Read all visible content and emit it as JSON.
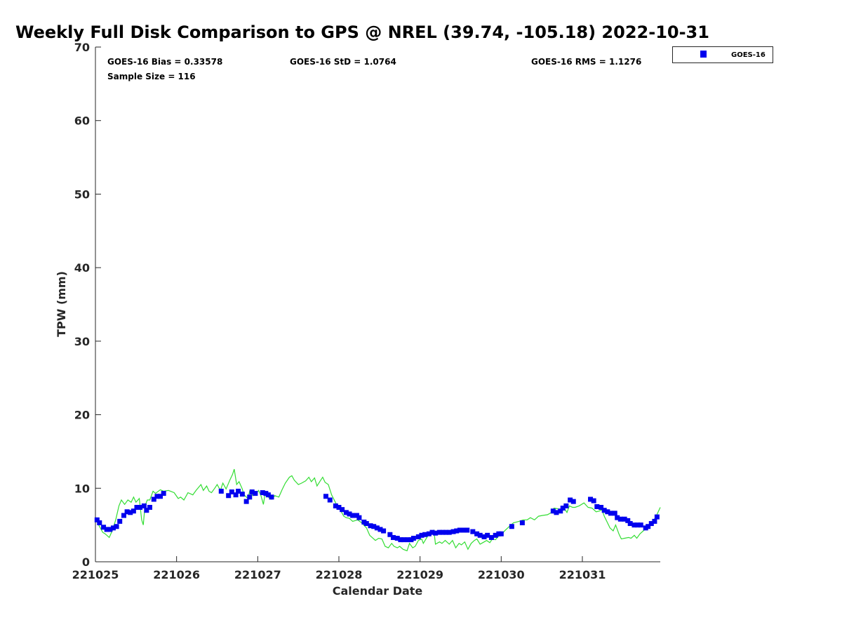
{
  "chart_data": {
    "type": "scatter",
    "title": "Weekly Full Disk Comparison to GPS @ NREL (39.74, -105.18) 2022-10-31",
    "xlabel": "Calendar Date",
    "ylabel": "TPW (mm)",
    "x_units": "days since 221025",
    "xlim": [
      0,
      6.96
    ],
    "ylim": [
      0,
      70
    ],
    "xticks": [
      0,
      1,
      2,
      3,
      4,
      5,
      6
    ],
    "xtick_labels": [
      "221025",
      "221026",
      "221027",
      "221028",
      "221029",
      "221030",
      "221031"
    ],
    "yticks": [
      0,
      10,
      20,
      30,
      40,
      50,
      60,
      70
    ],
    "ytick_labels": [
      "0",
      "10",
      "20",
      "30",
      "40",
      "50",
      "60",
      "70"
    ],
    "grid": false,
    "legend": {
      "position": "top-right",
      "entries": [
        "GOES-16"
      ]
    },
    "stats": {
      "bias": "GOES-16 Bias = 0.33578",
      "std": "GOES-16 StD = 1.0764",
      "rms": "GOES-16 RMS = 1.1276",
      "sample": "Sample Size = 116"
    },
    "colors": {
      "goes": "#0000ee",
      "gps": "#33dd33"
    },
    "series": [
      {
        "name": "GOES-16",
        "kind": "markers",
        "x": [
          0.02,
          0.05,
          0.1,
          0.14,
          0.18,
          0.22,
          0.26,
          0.3,
          0.35,
          0.39,
          0.43,
          0.47,
          0.51,
          0.55,
          0.6,
          0.63,
          0.67,
          0.72,
          0.76,
          0.8,
          0.84,
          1.55,
          1.64,
          1.68,
          1.73,
          1.76,
          1.81,
          1.86,
          1.9,
          1.93,
          1.97,
          2.06,
          2.1,
          2.13,
          2.17,
          2.84,
          2.89,
          2.96,
          3.0,
          3.04,
          3.09,
          3.13,
          3.17,
          3.22,
          3.25,
          3.31,
          3.34,
          3.39,
          3.43,
          3.47,
          3.51,
          3.55,
          3.63,
          3.67,
          3.72,
          3.76,
          3.8,
          3.85,
          3.89,
          3.92,
          3.98,
          4.02,
          4.06,
          4.11,
          4.15,
          4.19,
          4.24,
          4.28,
          4.32,
          4.36,
          4.41,
          4.45,
          4.49,
          4.54,
          4.58,
          4.65,
          4.7,
          4.74,
          4.79,
          4.83,
          4.88,
          4.93,
          4.97,
          5.0,
          5.13,
          5.26,
          5.64,
          5.68,
          5.73,
          5.76,
          5.8,
          5.85,
          5.89,
          6.1,
          6.14,
          6.18,
          6.23,
          6.27,
          6.31,
          6.35,
          6.4,
          6.43,
          6.47,
          6.52,
          6.56,
          6.59,
          6.64,
          6.68,
          6.72,
          6.78,
          6.81,
          6.85,
          6.89,
          6.92
        ],
        "y": [
          5.7,
          5.3,
          4.7,
          4.4,
          4.4,
          4.6,
          4.8,
          5.5,
          6.3,
          6.8,
          6.7,
          6.9,
          7.4,
          7.4,
          7.6,
          7.0,
          7.4,
          8.5,
          8.9,
          8.9,
          9.3,
          9.6,
          9.0,
          9.5,
          9.1,
          9.6,
          9.2,
          8.2,
          8.8,
          9.5,
          9.3,
          9.4,
          9.3,
          9.1,
          8.8,
          8.9,
          8.4,
          7.6,
          7.4,
          7.1,
          6.7,
          6.5,
          6.3,
          6.3,
          6.0,
          5.4,
          5.2,
          4.9,
          4.8,
          4.6,
          4.4,
          4.2,
          3.7,
          3.3,
          3.2,
          3.0,
          3.0,
          3.0,
          3.0,
          3.2,
          3.4,
          3.6,
          3.7,
          3.8,
          4.0,
          3.9,
          4.0,
          4.0,
          4.0,
          4.0,
          4.1,
          4.2,
          4.3,
          4.3,
          4.3,
          4.1,
          3.8,
          3.6,
          3.4,
          3.6,
          3.3,
          3.6,
          3.8,
          3.8,
          4.8,
          5.3,
          6.9,
          6.7,
          6.9,
          7.3,
          7.6,
          8.4,
          8.2,
          8.5,
          8.3,
          7.5,
          7.4,
          7.0,
          6.8,
          6.6,
          6.6,
          6.0,
          5.8,
          5.8,
          5.6,
          5.2,
          5.0,
          5.0,
          5.0,
          4.6,
          4.8,
          5.2,
          5.5,
          6.1
        ]
      },
      {
        "name": "GPS",
        "kind": "line",
        "x": [
          0.0,
          0.04,
          0.09,
          0.12,
          0.17,
          0.21,
          0.25,
          0.29,
          0.32,
          0.36,
          0.4,
          0.44,
          0.47,
          0.5,
          0.54,
          0.57,
          0.59,
          0.61,
          0.64,
          0.67,
          0.71,
          0.74,
          0.8,
          0.84,
          0.9,
          0.97,
          1.02,
          1.05,
          1.09,
          1.14,
          1.2,
          1.24,
          1.3,
          1.33,
          1.37,
          1.4,
          1.43,
          1.47,
          1.5,
          1.54,
          1.57,
          1.61,
          1.66,
          1.69,
          1.71,
          1.74,
          1.77,
          1.81,
          1.83,
          1.88,
          1.9,
          1.94,
          1.97,
          2.01,
          2.04,
          2.07,
          2.09,
          2.13,
          2.17,
          2.21,
          2.26,
          2.3,
          2.34,
          2.39,
          2.42,
          2.45,
          2.5,
          2.54,
          2.59,
          2.63,
          2.66,
          2.7,
          2.73,
          2.77,
          2.8,
          2.83,
          2.87,
          2.91,
          2.96,
          3.01,
          3.06,
          3.09,
          3.13,
          3.17,
          3.23,
          3.28,
          3.34,
          3.38,
          3.41,
          3.45,
          3.49,
          3.53,
          3.57,
          3.61,
          3.65,
          3.68,
          3.72,
          3.75,
          3.79,
          3.84,
          3.87,
          3.91,
          3.94,
          3.98,
          4.02,
          4.04,
          4.1,
          4.13,
          4.17,
          4.19,
          4.24,
          4.27,
          4.31,
          4.36,
          4.4,
          4.44,
          4.48,
          4.51,
          4.55,
          4.59,
          4.63,
          4.67,
          4.7,
          4.74,
          4.79,
          4.82,
          4.86,
          4.89,
          4.93,
          4.96,
          5.01,
          5.05,
          5.1,
          5.15,
          5.22,
          5.27,
          5.32,
          5.36,
          5.41,
          5.46,
          5.51,
          5.57,
          5.62,
          5.65,
          5.7,
          5.74,
          5.77,
          5.81,
          5.84,
          5.88,
          5.91,
          5.96,
          6.02,
          6.07,
          6.12,
          6.17,
          6.21,
          6.24,
          6.27,
          6.31,
          6.34,
          6.38,
          6.41,
          6.45,
          6.48,
          6.52,
          6.57,
          6.6,
          6.64,
          6.67,
          6.71,
          6.76,
          6.81,
          6.86,
          6.91,
          6.96
        ],
        "y": [
          5.9,
          5.0,
          4.0,
          3.8,
          3.3,
          4.3,
          5.7,
          7.6,
          8.4,
          7.8,
          8.4,
          8.1,
          8.8,
          8.1,
          8.6,
          5.7,
          5.0,
          7.6,
          8.4,
          8.4,
          9.6,
          9.3,
          9.8,
          9.6,
          9.7,
          9.4,
          8.6,
          8.8,
          8.4,
          9.4,
          9.1,
          9.7,
          10.5,
          9.7,
          10.3,
          9.6,
          9.4,
          10.0,
          10.5,
          9.7,
          10.7,
          9.9,
          11.2,
          11.9,
          12.6,
          10.5,
          10.9,
          9.9,
          9.1,
          8.6,
          9.6,
          9.0,
          9.1,
          9.7,
          9.0,
          7.8,
          9.2,
          8.8,
          8.5,
          9.0,
          8.8,
          9.8,
          10.7,
          11.5,
          11.7,
          11.1,
          10.5,
          10.7,
          11.0,
          11.5,
          10.9,
          11.4,
          10.3,
          11.0,
          11.5,
          10.8,
          10.5,
          9.1,
          8.0,
          7.2,
          6.2,
          6.0,
          5.9,
          5.5,
          5.7,
          5.3,
          4.6,
          3.6,
          3.3,
          2.9,
          3.2,
          3.1,
          2.1,
          1.9,
          2.5,
          2.1,
          1.9,
          2.1,
          1.7,
          1.5,
          2.5,
          1.9,
          2.1,
          2.9,
          3.1,
          2.5,
          3.6,
          4.0,
          4.3,
          2.4,
          2.7,
          2.5,
          2.9,
          2.4,
          2.9,
          1.9,
          2.5,
          2.3,
          2.7,
          1.7,
          2.5,
          2.9,
          3.1,
          2.4,
          2.7,
          2.9,
          2.6,
          3.1,
          3.0,
          3.4,
          3.8,
          4.3,
          4.8,
          5.3,
          5.5,
          5.7,
          5.7,
          6.0,
          5.7,
          6.2,
          6.3,
          6.4,
          6.7,
          7.3,
          7.2,
          6.9,
          7.4,
          6.7,
          7.6,
          7.4,
          7.4,
          7.6,
          8.0,
          7.4,
          7.3,
          6.8,
          6.9,
          7.1,
          6.2,
          5.3,
          4.6,
          4.2,
          5.0,
          3.8,
          3.1,
          3.2,
          3.3,
          3.2,
          3.6,
          3.2,
          3.8,
          4.3,
          4.6,
          5.3,
          6.2,
          7.4
        ]
      }
    ]
  }
}
